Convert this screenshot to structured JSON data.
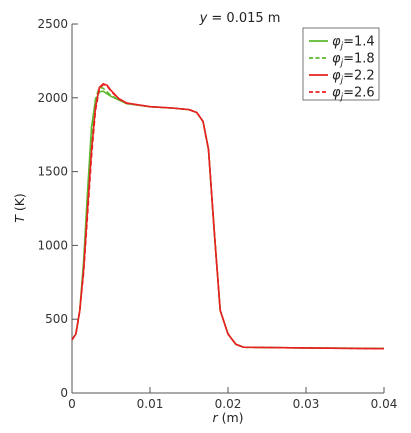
{
  "chart_data": {
    "type": "line",
    "title": "y = 0.015 m",
    "title_var": "y",
    "title_rest": " = 0.015 m",
    "xlabel_var": "r",
    "xlabel_unit": " (m)",
    "ylabel_var": "T",
    "ylabel_unit": " (K)",
    "xlim": [
      0,
      0.04
    ],
    "ylim": [
      0,
      2500
    ],
    "xticks": [
      0,
      0.01,
      0.02,
      0.03,
      0.04
    ],
    "xtick_labels": [
      "0",
      "0.01",
      "0.02",
      "0.03",
      "0.04"
    ],
    "yticks": [
      0,
      500,
      1000,
      1500,
      2000,
      2500
    ],
    "ytick_labels": [
      "0",
      "500",
      "1000",
      "1500",
      "2000",
      "2500"
    ],
    "grid": false,
    "legend_position": "top-right",
    "series": [
      {
        "name": "φj=1.4",
        "legend_value": "=1.4",
        "color": "#5cb82e",
        "dash": "solid",
        "points": [
          [
            0,
            360
          ],
          [
            0.0005,
            400
          ],
          [
            0.001,
            560
          ],
          [
            0.0015,
            900
          ],
          [
            0.002,
            1370
          ],
          [
            0.0025,
            1800
          ],
          [
            0.003,
            1980
          ],
          [
            0.0035,
            2040
          ],
          [
            0.004,
            2045
          ],
          [
            0.005,
            2010
          ],
          [
            0.007,
            1960
          ],
          [
            0.01,
            1940
          ],
          [
            0.013,
            1930
          ],
          [
            0.015,
            1920
          ],
          [
            0.016,
            1900
          ],
          [
            0.0168,
            1840
          ],
          [
            0.0175,
            1650
          ],
          [
            0.0183,
            1050
          ],
          [
            0.019,
            560
          ],
          [
            0.02,
            400
          ],
          [
            0.021,
            330
          ],
          [
            0.022,
            310
          ],
          [
            0.03,
            305
          ],
          [
            0.04,
            302
          ]
        ]
      },
      {
        "name": "φj=1.8",
        "legend_value": "=1.8",
        "color": "#5cb82e",
        "dash": "dashed",
        "points": [
          [
            0,
            360
          ],
          [
            0.0005,
            400
          ],
          [
            0.001,
            560
          ],
          [
            0.0015,
            880
          ],
          [
            0.002,
            1330
          ],
          [
            0.0025,
            1750
          ],
          [
            0.003,
            1990
          ],
          [
            0.0035,
            2070
          ],
          [
            0.004,
            2065
          ],
          [
            0.005,
            2015
          ],
          [
            0.007,
            1962
          ],
          [
            0.01,
            1940
          ],
          [
            0.013,
            1930
          ],
          [
            0.015,
            1920
          ],
          [
            0.016,
            1900
          ],
          [
            0.0168,
            1840
          ],
          [
            0.0175,
            1650
          ],
          [
            0.0183,
            1050
          ],
          [
            0.019,
            560
          ],
          [
            0.02,
            400
          ],
          [
            0.021,
            330
          ],
          [
            0.022,
            310
          ],
          [
            0.03,
            305
          ],
          [
            0.04,
            302
          ]
        ]
      },
      {
        "name": "φj=2.2",
        "legend_value": "=2.2",
        "color": "#e82020",
        "dash": "solid",
        "points": [
          [
            0,
            360
          ],
          [
            0.0005,
            400
          ],
          [
            0.001,
            560
          ],
          [
            0.0015,
            840
          ],
          [
            0.002,
            1250
          ],
          [
            0.0025,
            1640
          ],
          [
            0.003,
            1930
          ],
          [
            0.0035,
            2070
          ],
          [
            0.004,
            2095
          ],
          [
            0.0045,
            2085
          ],
          [
            0.005,
            2050
          ],
          [
            0.006,
            1995
          ],
          [
            0.007,
            1965
          ],
          [
            0.01,
            1940
          ],
          [
            0.013,
            1930
          ],
          [
            0.015,
            1920
          ],
          [
            0.016,
            1900
          ],
          [
            0.0168,
            1840
          ],
          [
            0.0175,
            1650
          ],
          [
            0.0183,
            1050
          ],
          [
            0.019,
            560
          ],
          [
            0.02,
            400
          ],
          [
            0.021,
            330
          ],
          [
            0.022,
            310
          ],
          [
            0.03,
            305
          ],
          [
            0.04,
            300
          ]
        ]
      },
      {
        "name": "φj=2.6",
        "legend_value": "=2.6",
        "color": "#e82020",
        "dash": "dashed",
        "points": [
          [
            0,
            360
          ],
          [
            0.0005,
            400
          ],
          [
            0.001,
            560
          ],
          [
            0.0015,
            820
          ],
          [
            0.002,
            1210
          ],
          [
            0.0025,
            1600
          ],
          [
            0.003,
            1910
          ],
          [
            0.0035,
            2060
          ],
          [
            0.004,
            2090
          ],
          [
            0.0045,
            2080
          ],
          [
            0.005,
            2045
          ],
          [
            0.006,
            1992
          ],
          [
            0.007,
            1963
          ],
          [
            0.01,
            1940
          ],
          [
            0.013,
            1930
          ],
          [
            0.015,
            1920
          ],
          [
            0.016,
            1900
          ],
          [
            0.0168,
            1840
          ],
          [
            0.0175,
            1650
          ],
          [
            0.0183,
            1050
          ],
          [
            0.019,
            560
          ],
          [
            0.02,
            400
          ],
          [
            0.021,
            330
          ],
          [
            0.022,
            310
          ],
          [
            0.03,
            305
          ],
          [
            0.04,
            300
          ]
        ]
      }
    ]
  }
}
